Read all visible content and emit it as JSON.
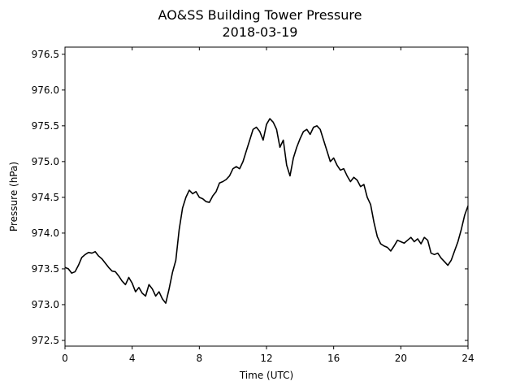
{
  "chart_data": {
    "type": "line",
    "title": "AO&SS Building Tower Pressure",
    "subtitle": "2018-03-19",
    "xlabel": "Time (UTC)",
    "ylabel": "Pressure (hPa)",
    "xlim": [
      0,
      24
    ],
    "ylim": [
      972.42,
      976.6
    ],
    "xticks": [
      0,
      4,
      8,
      12,
      16,
      20,
      24
    ],
    "xtick_labels": [
      "0",
      "4",
      "8",
      "12",
      "16",
      "20",
      "24"
    ],
    "yticks": [
      972.5,
      973.0,
      973.5,
      974.0,
      974.5,
      975.0,
      975.5,
      976.0,
      976.5
    ],
    "ytick_labels": [
      "972.5",
      "973.0",
      "973.5",
      "974.0",
      "974.5",
      "975.0",
      "975.5",
      "976.0",
      "976.5"
    ],
    "grid": false,
    "line_color": "#000000",
    "series": [
      {
        "name": "",
        "x": [
          0.0,
          0.2,
          0.4,
          0.6,
          0.8,
          1.0,
          1.2,
          1.4,
          1.6,
          1.8,
          2.0,
          2.2,
          2.4,
          2.6,
          2.8,
          3.0,
          3.2,
          3.4,
          3.6,
          3.8,
          4.0,
          4.2,
          4.4,
          4.6,
          4.8,
          5.0,
          5.2,
          5.4,
          5.6,
          5.8,
          6.0,
          6.2,
          6.4,
          6.6,
          6.8,
          7.0,
          7.2,
          7.4,
          7.6,
          7.8,
          8.0,
          8.2,
          8.4,
          8.6,
          8.8,
          9.0,
          9.2,
          9.4,
          9.6,
          9.8,
          10.0,
          10.2,
          10.4,
          10.6,
          10.8,
          11.0,
          11.2,
          11.4,
          11.6,
          11.8,
          12.0,
          12.2,
          12.4,
          12.6,
          12.8,
          13.0,
          13.2,
          13.4,
          13.6,
          13.8,
          14.0,
          14.2,
          14.4,
          14.6,
          14.8,
          15.0,
          15.2,
          15.4,
          15.6,
          15.8,
          16.0,
          16.2,
          16.4,
          16.6,
          16.8,
          17.0,
          17.2,
          17.4,
          17.6,
          17.8,
          18.0,
          18.2,
          18.4,
          18.6,
          18.8,
          19.0,
          19.2,
          19.4,
          19.6,
          19.8,
          20.0,
          20.2,
          20.4,
          20.6,
          20.8,
          21.0,
          21.2,
          21.4,
          21.6,
          21.8,
          22.0,
          22.2,
          22.4,
          22.6,
          22.8,
          23.0,
          23.2,
          23.4,
          23.6,
          23.8,
          24.0
        ],
        "y": [
          973.52,
          973.5,
          973.44,
          973.46,
          973.55,
          973.66,
          973.7,
          973.73,
          973.72,
          973.74,
          973.68,
          973.64,
          973.58,
          973.52,
          973.47,
          973.46,
          973.4,
          973.33,
          973.28,
          973.38,
          973.3,
          973.18,
          973.24,
          973.16,
          973.12,
          973.28,
          973.22,
          973.12,
          973.18,
          973.08,
          973.02,
          973.22,
          973.45,
          973.62,
          974.05,
          974.35,
          974.5,
          974.6,
          974.55,
          974.58,
          974.5,
          974.48,
          974.44,
          974.43,
          974.52,
          974.58,
          974.7,
          974.72,
          974.75,
          974.8,
          974.9,
          974.93,
          974.9,
          975.0,
          975.15,
          975.3,
          975.45,
          975.48,
          975.42,
          975.3,
          975.52,
          975.6,
          975.55,
          975.45,
          975.2,
          975.3,
          974.95,
          974.8,
          975.05,
          975.2,
          975.32,
          975.42,
          975.45,
          975.38,
          975.48,
          975.5,
          975.45,
          975.3,
          975.15,
          975.0,
          975.05,
          974.95,
          974.88,
          974.9,
          974.8,
          974.72,
          974.78,
          974.74,
          974.65,
          974.68,
          974.5,
          974.4,
          974.15,
          973.95,
          973.85,
          973.82,
          973.8,
          973.75,
          973.82,
          973.9,
          973.88,
          973.86,
          973.9,
          973.94,
          973.88,
          973.92,
          973.85,
          973.94,
          973.9,
          973.72,
          973.7,
          973.72,
          973.65,
          973.6,
          973.55,
          973.62,
          973.75,
          973.88,
          974.05,
          974.25,
          974.38
        ]
      }
    ]
  }
}
